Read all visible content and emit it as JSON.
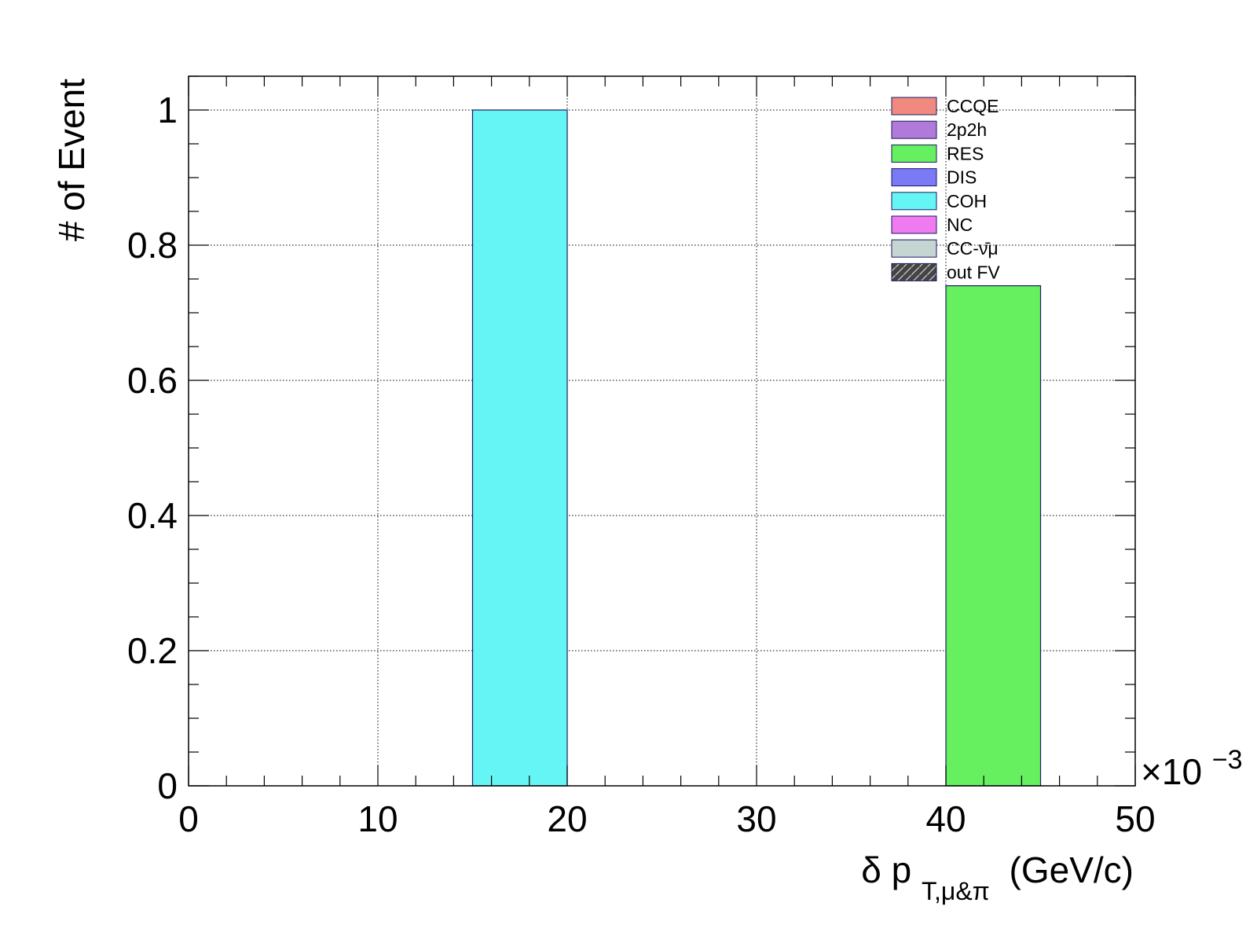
{
  "chart_data": {
    "type": "bar",
    "title": "",
    "xlabel": {
      "main": "δ p",
      "subscript": "T,μ&π",
      "unit": "(GeV/c)"
    },
    "ylabel": "# of Event",
    "x_multiplier": "×10",
    "x_multiplier_exponent": "−3",
    "xlim": [
      0,
      50
    ],
    "ylim": [
      0,
      1.05
    ],
    "x_ticks": [
      "0",
      "10",
      "20",
      "30",
      "40",
      "50"
    ],
    "x_tick_values": [
      0,
      10,
      20,
      30,
      40,
      50
    ],
    "y_ticks": [
      "0",
      "0.2",
      "0.4",
      "0.6",
      "0.8",
      "1"
    ],
    "y_tick_values": [
      0,
      0.2,
      0.4,
      0.6,
      0.8,
      1
    ],
    "grid": true,
    "legend_position": "top-right",
    "legend": [
      {
        "label": "CCQE",
        "color": "#f08a80"
      },
      {
        "label": "2p2h",
        "color": "#b07ad8"
      },
      {
        "label": "RES",
        "color": "#66f060"
      },
      {
        "label": "DIS",
        "color": "#7a7af5"
      },
      {
        "label": "COH",
        "color": "#66f5f5"
      },
      {
        "label": "NC",
        "color": "#f07af0"
      },
      {
        "label": "CC-ν̄μ",
        "color": "#c5d5d2"
      },
      {
        "label": "out FV",
        "color": "#444444"
      }
    ],
    "bars": [
      {
        "x0": 15,
        "x1": 20,
        "value": 1.0,
        "category": "COH",
        "color": "#66f5f5"
      },
      {
        "x0": 40,
        "x1": 45,
        "value": 0.74,
        "category": "RES",
        "color": "#66f060"
      }
    ]
  }
}
